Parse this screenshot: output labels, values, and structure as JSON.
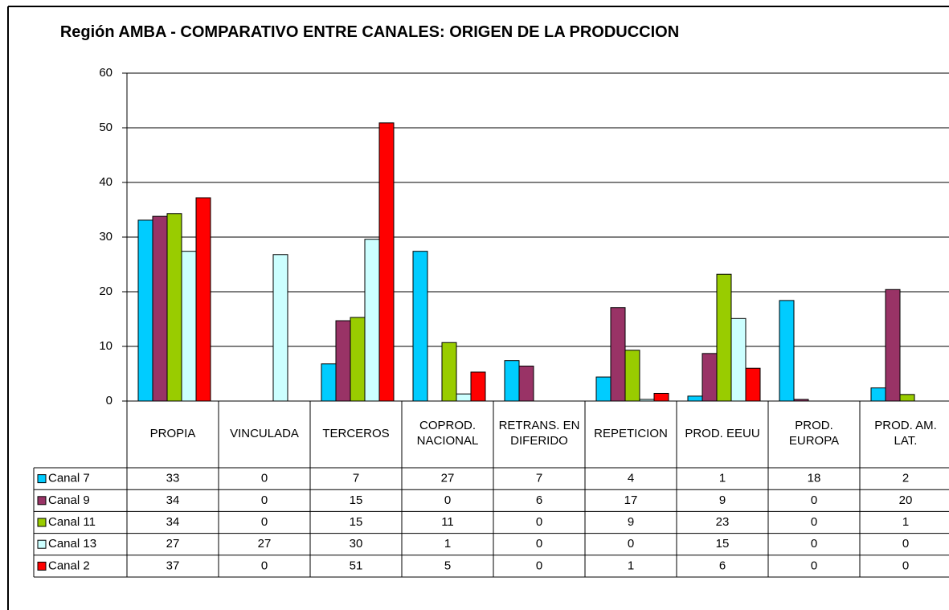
{
  "chart_data": {
    "type": "bar",
    "title": "Región AMBA - COMPARATIVO ENTRE CANALES: ORIGEN DE LA PRODUCCION",
    "categories": [
      "PROPIA",
      "VINCULADA",
      "TERCEROS",
      "COPROD. NACIONAL",
      "RETRANS. EN DIFERIDO",
      "REPETICION",
      "PROD. EEUU",
      "PROD. EUROPA",
      "PROD. AM. LAT."
    ],
    "series": [
      {
        "name": "Canal 7",
        "color": "#00ccff",
        "values": [
          33.1,
          0,
          6.8,
          27.4,
          7.4,
          4.4,
          0.9,
          18.4,
          2.4
        ],
        "value_labels": [
          "33",
          "0",
          "7",
          "27",
          "7",
          "4",
          "1",
          "18",
          "2"
        ]
      },
      {
        "name": "Canal 9",
        "color": "#993366",
        "values": [
          33.8,
          0,
          14.7,
          0,
          6.4,
          17.1,
          8.7,
          0.3,
          20.4
        ],
        "value_labels": [
          "34",
          "0",
          "15",
          "0",
          "6",
          "17",
          "9",
          "0",
          "20"
        ]
      },
      {
        "name": "Canal 11",
        "color": "#99cc00",
        "values": [
          34.3,
          0,
          15.3,
          10.7,
          0,
          9.3,
          23.2,
          0,
          1.2
        ],
        "value_labels": [
          "34",
          "0",
          "15",
          "11",
          "0",
          "9",
          "23",
          "0",
          "1"
        ]
      },
      {
        "name": "Canal 13",
        "color": "#ccffff",
        "values": [
          27.4,
          26.8,
          29.6,
          1.3,
          0,
          0.3,
          15.1,
          0,
          0
        ],
        "value_labels": [
          "27",
          "27",
          "30",
          "1",
          "0",
          "0",
          "15",
          "0",
          "0"
        ]
      },
      {
        "name": "Canal 2",
        "color": "#ff0000",
        "values": [
          37.2,
          0,
          50.9,
          5.3,
          0,
          1.4,
          6.0,
          0,
          0
        ],
        "value_labels": [
          "37",
          "0",
          "51",
          "5",
          "0",
          "1",
          "6",
          "0",
          "0"
        ]
      }
    ],
    "ylim": [
      0,
      60
    ],
    "yticks": [
      0,
      10,
      20,
      30,
      40,
      50,
      60
    ],
    "grid": true
  }
}
